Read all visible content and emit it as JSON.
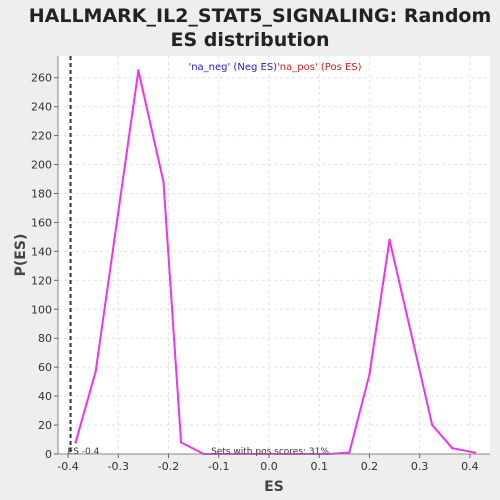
{
  "chart_data": {
    "type": "line",
    "title_lines": [
      "HALLMARK_IL2_STAT5_SIGNALING: Random",
      "ES distribution"
    ],
    "xlabel": "ES",
    "ylabel": "P(ES)",
    "xlim": [
      -0.42,
      0.44
    ],
    "ylim": [
      0,
      275
    ],
    "xticks": [
      -0.4,
      -0.3,
      -0.2,
      -0.1,
      0.0,
      0.1,
      0.2,
      0.3,
      0.4
    ],
    "xtick_labels": [
      "-0.4",
      "-0.3",
      "-0.2",
      "-0.1",
      "0.0",
      "0.1",
      "0.2",
      "0.3",
      "0.4"
    ],
    "yticks": [
      0,
      20,
      40,
      60,
      80,
      100,
      120,
      140,
      160,
      180,
      200,
      220,
      240,
      260
    ],
    "ytick_labels": [
      "0",
      "20",
      "40",
      "60",
      "80",
      "100",
      "120",
      "140",
      "160",
      "180",
      "200",
      "220",
      "240",
      "260"
    ],
    "grid": true,
    "legend": {
      "neg_label": "'na_neg' (Neg ES)",
      "pos_label": "'na_pos' (Pos ES)",
      "placement": "top-center"
    },
    "series": [
      {
        "color": "#ee33ee",
        "points": [
          {
            "x": -0.385,
            "y": 8
          },
          {
            "x": -0.345,
            "y": 57
          },
          {
            "x": -0.26,
            "y": 265
          },
          {
            "x": -0.21,
            "y": 188
          },
          {
            "x": -0.175,
            "y": 8
          },
          {
            "x": -0.13,
            "y": 0
          },
          {
            "x": 0.12,
            "y": 0
          },
          {
            "x": 0.16,
            "y": 1
          },
          {
            "x": 0.2,
            "y": 55
          },
          {
            "x": 0.24,
            "y": 148
          },
          {
            "x": 0.325,
            "y": 20
          },
          {
            "x": 0.365,
            "y": 4
          },
          {
            "x": 0.41,
            "y": 1
          }
        ]
      }
    ],
    "marker": {
      "x": -0.395,
      "label": "ES -0.4"
    },
    "annotation": "Sets with pos scores: 31%"
  }
}
